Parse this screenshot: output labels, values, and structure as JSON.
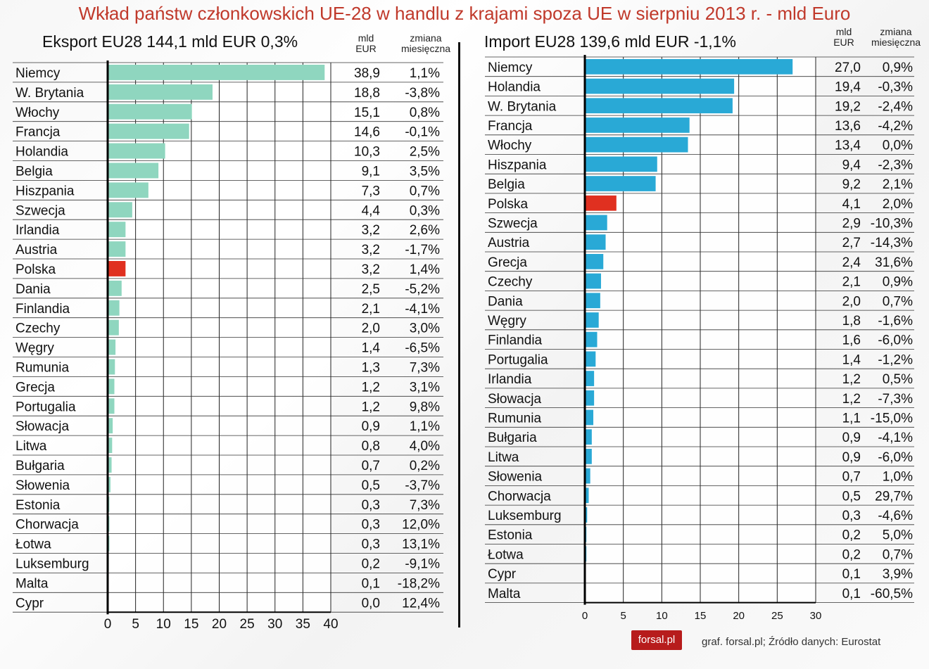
{
  "title": "Wkład państw członkowskich UE-28 w handlu z krajami spoza UE w sierpniu 2013 r. - mld Euro",
  "export": {
    "heading": "Eksport EU28  144,1 mld EUR  0,3%",
    "col_value": "mld EUR",
    "col_change": "zmiana miesięczna"
  },
  "import": {
    "heading": "Import EU28      139,6 mld EUR  -1,1%",
    "col_value": "mld EUR",
    "col_change": "zmiana miesięczna"
  },
  "colors": {
    "export_bar": "#8fd6bf",
    "import_bar": "#29a9d6",
    "highlight": "#e03020",
    "title": "#c0392b"
  },
  "logo": "forsal.pl",
  "credit": "graf. forsal.pl; Źródło danych: Eurostat",
  "chart_data": [
    {
      "type": "bar",
      "orientation": "horizontal",
      "xlim": [
        0,
        40
      ],
      "xticks": [
        "0",
        "5",
        "10",
        "15",
        "20",
        "25",
        "30",
        "35",
        "40"
      ],
      "grid": true,
      "highlight": "Polska",
      "categories": [
        "Niemcy",
        "W. Brytania",
        "Włochy",
        "Francja",
        "Holandia",
        "Belgia",
        "Hiszpania",
        "Szwecja",
        "Irlandia",
        "Austria",
        "Polska",
        "Dania",
        "Finlandia",
        "Czechy",
        "Węgry",
        "Rumunia",
        "Grecja",
        "Portugalia",
        "Słowacja",
        "Litwa",
        "Bułgaria",
        "Słowenia",
        "Estonia",
        "Chorwacja",
        "Łotwa",
        "Luksemburg",
        "Malta",
        "Cypr"
      ],
      "values": [
        38.9,
        18.8,
        15.1,
        14.6,
        10.3,
        9.1,
        7.3,
        4.4,
        3.2,
        3.2,
        3.2,
        2.5,
        2.1,
        2.0,
        1.4,
        1.3,
        1.2,
        1.2,
        0.9,
        0.8,
        0.7,
        0.5,
        0.3,
        0.3,
        0.3,
        0.2,
        0.1,
        0.0
      ],
      "value_labels": [
        "38,9",
        "18,8",
        "15,1",
        "14,6",
        "10,3",
        "9,1",
        "7,3",
        "4,4",
        "3,2",
        "3,2",
        "3,2",
        "2,5",
        "2,1",
        "2,0",
        "1,4",
        "1,3",
        "1,2",
        "1,2",
        "0,9",
        "0,8",
        "0,7",
        "0,5",
        "0,3",
        "0,3",
        "0,3",
        "0,2",
        "0,1",
        "0,0"
      ],
      "changes": [
        "1,1%",
        "-3,8%",
        "0,8%",
        "-0,1%",
        "2,5%",
        "3,5%",
        "0,7%",
        "0,3%",
        "2,6%",
        "-1,7%",
        "1,4%",
        "-5,2%",
        "-4,1%",
        "3,0%",
        "-6,5%",
        "7,3%",
        "3,1%",
        "9,8%",
        "1,1%",
        "4,0%",
        "0,2%",
        "-3,7%",
        "7,3%",
        "12,0%",
        "13,1%",
        "-9,1%",
        "-18,2%",
        "12,4%"
      ]
    },
    {
      "type": "bar",
      "orientation": "horizontal",
      "xlim": [
        0,
        30
      ],
      "xticks": [
        "0",
        "5",
        "10",
        "15",
        "20",
        "25",
        "30"
      ],
      "grid": true,
      "highlight": "Polska",
      "categories": [
        "Niemcy",
        "Holandia",
        "W. Brytania",
        "Francja",
        "Włochy",
        "Hiszpania",
        "Belgia",
        "Polska",
        "Szwecja",
        "Austria",
        "Grecja",
        "Czechy",
        "Dania",
        "Węgry",
        "Finlandia",
        "Portugalia",
        "Irlandia",
        "Słowacja",
        "Rumunia",
        "Bułgaria",
        "Litwa",
        "Słowenia",
        "Chorwacja",
        "Luksemburg",
        "Estonia",
        "Łotwa",
        "Cypr",
        "Malta"
      ],
      "values": [
        27.0,
        19.4,
        19.2,
        13.6,
        13.4,
        9.4,
        9.2,
        4.1,
        2.9,
        2.7,
        2.4,
        2.1,
        2.0,
        1.8,
        1.6,
        1.4,
        1.2,
        1.2,
        1.1,
        0.9,
        0.9,
        0.7,
        0.5,
        0.3,
        0.2,
        0.2,
        0.1,
        0.1
      ],
      "value_labels": [
        "27,0",
        "19,4",
        "19,2",
        "13,6",
        "13,4",
        "9,4",
        "9,2",
        "4,1",
        "2,9",
        "2,7",
        "2,4",
        "2,1",
        "2,0",
        "1,8",
        "1,6",
        "1,4",
        "1,2",
        "1,2",
        "1,1",
        "0,9",
        "0,9",
        "0,7",
        "0,5",
        "0,3",
        "0,2",
        "0,2",
        "0,1",
        "0,1"
      ],
      "changes": [
        "0,9%",
        "-0,3%",
        "-2,4%",
        "-4,2%",
        "0,0%",
        "-2,3%",
        "2,1%",
        "2,0%",
        "-10,3%",
        "-14,3%",
        "31,6%",
        "0,9%",
        "0,7%",
        "-1,6%",
        "-6,0%",
        "-1,2%",
        "0,5%",
        "-7,3%",
        "-15,0%",
        "-4,1%",
        "-6,0%",
        "1,0%",
        "29,7%",
        "-4,6%",
        "5,0%",
        "0,7%",
        "3,9%",
        "-60,5%"
      ]
    }
  ]
}
